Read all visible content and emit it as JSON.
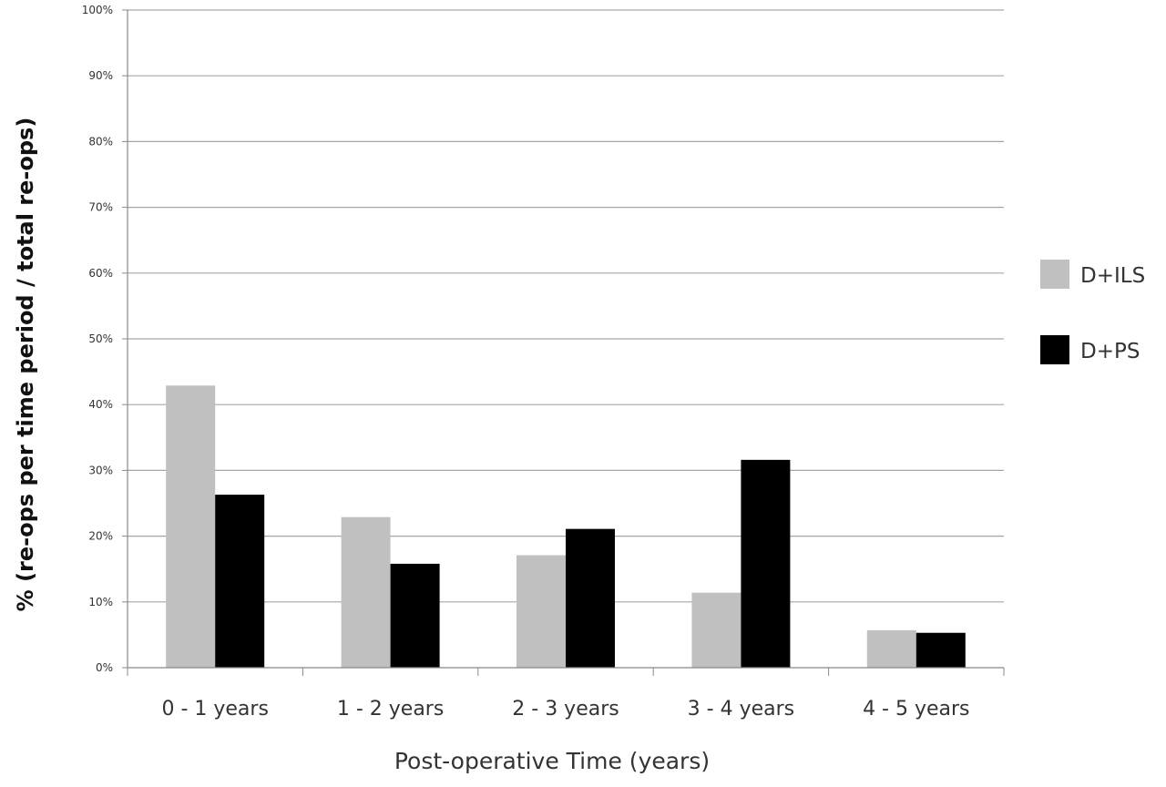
{
  "chart_data": {
    "type": "bar",
    "title": "",
    "xlabel": "Post-operative Time (years)",
    "ylabel": "% (re-ops per time period / total re-ops)",
    "categories": [
      "0 - 1 years",
      "1 - 2 years",
      "2 - 3 years",
      "3 - 4 years",
      "4 - 5 years"
    ],
    "yticks": [
      "0%",
      "10%",
      "20%",
      "30%",
      "40%",
      "50%",
      "60%",
      "70%",
      "80%",
      "90%",
      "100%"
    ],
    "ylim": [
      0,
      100
    ],
    "grid": true,
    "legend_position": "right",
    "series": [
      {
        "name": "D+ILS",
        "color": "#c0c0c0",
        "values": [
          42.9,
          22.9,
          17.1,
          11.4,
          5.7
        ]
      },
      {
        "name": "D+PS",
        "color": "#000000",
        "values": [
          26.3,
          15.8,
          21.1,
          31.6,
          5.3
        ]
      }
    ]
  }
}
